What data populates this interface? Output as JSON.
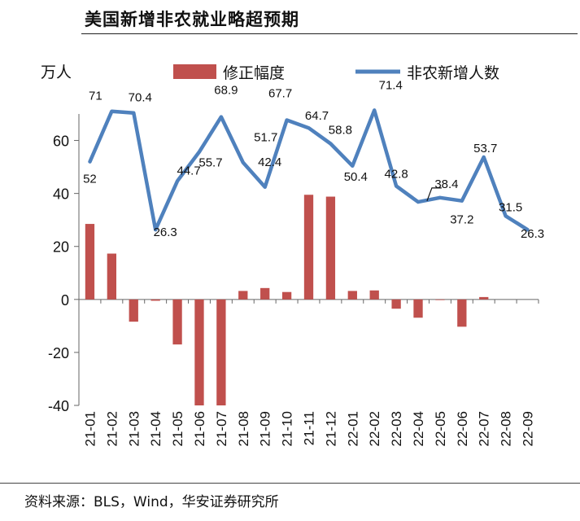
{
  "header": {
    "title": "美国新增非农就业略超预期"
  },
  "footer": {
    "source": "资料来源：BLS，Wind，华安证券研究所"
  },
  "chart_data": {
    "type": "bar+line",
    "ylabel": "万人",
    "ylim": [
      -40,
      70
    ],
    "yticks": [
      -40,
      -20,
      0,
      20,
      40,
      60
    ],
    "categories": [
      "21-01",
      "21-02",
      "21-03",
      "21-04",
      "21-05",
      "21-06",
      "21-07",
      "21-08",
      "21-09",
      "21-10",
      "21-11",
      "21-12",
      "22-01",
      "22-02",
      "22-03",
      "22-04",
      "22-05",
      "22-06",
      "22-07",
      "22-08",
      "22-09"
    ],
    "legend": {
      "bar": "修正幅度",
      "line": "非农新增人数",
      "placement": "top"
    },
    "series": [
      {
        "name": "修正幅度",
        "type": "bar",
        "color": "#c0504d",
        "values": [
          28.5,
          17.3,
          -8.4,
          -0.5,
          -17,
          -40,
          -40,
          3.2,
          4.3,
          2.8,
          39.5,
          38.8,
          3.2,
          3.4,
          -3.5,
          -6.9,
          -0.2,
          -10.3,
          0.9,
          0,
          0
        ]
      },
      {
        "name": "非农新增人数",
        "type": "line",
        "color": "#4f81bd",
        "values": [
          52,
          71,
          70.4,
          26.3,
          44.7,
          55.7,
          68.9,
          51.7,
          42.4,
          67.7,
          64.7,
          58.8,
          50.4,
          71.4,
          42.8,
          36.8,
          38.4,
          37.2,
          53.7,
          31.5,
          26.3
        ],
        "data_labels": [
          "52",
          "71",
          "70.4",
          "26.3",
          "44.7",
          "55.7",
          "68.9",
          "51.7",
          "42.4",
          "67.7",
          "64.7",
          "58.8",
          "50.4",
          "71.4",
          "42.8",
          "",
          "38.4",
          "37.2",
          "53.7",
          "31.5",
          "26.3"
        ]
      }
    ]
  }
}
